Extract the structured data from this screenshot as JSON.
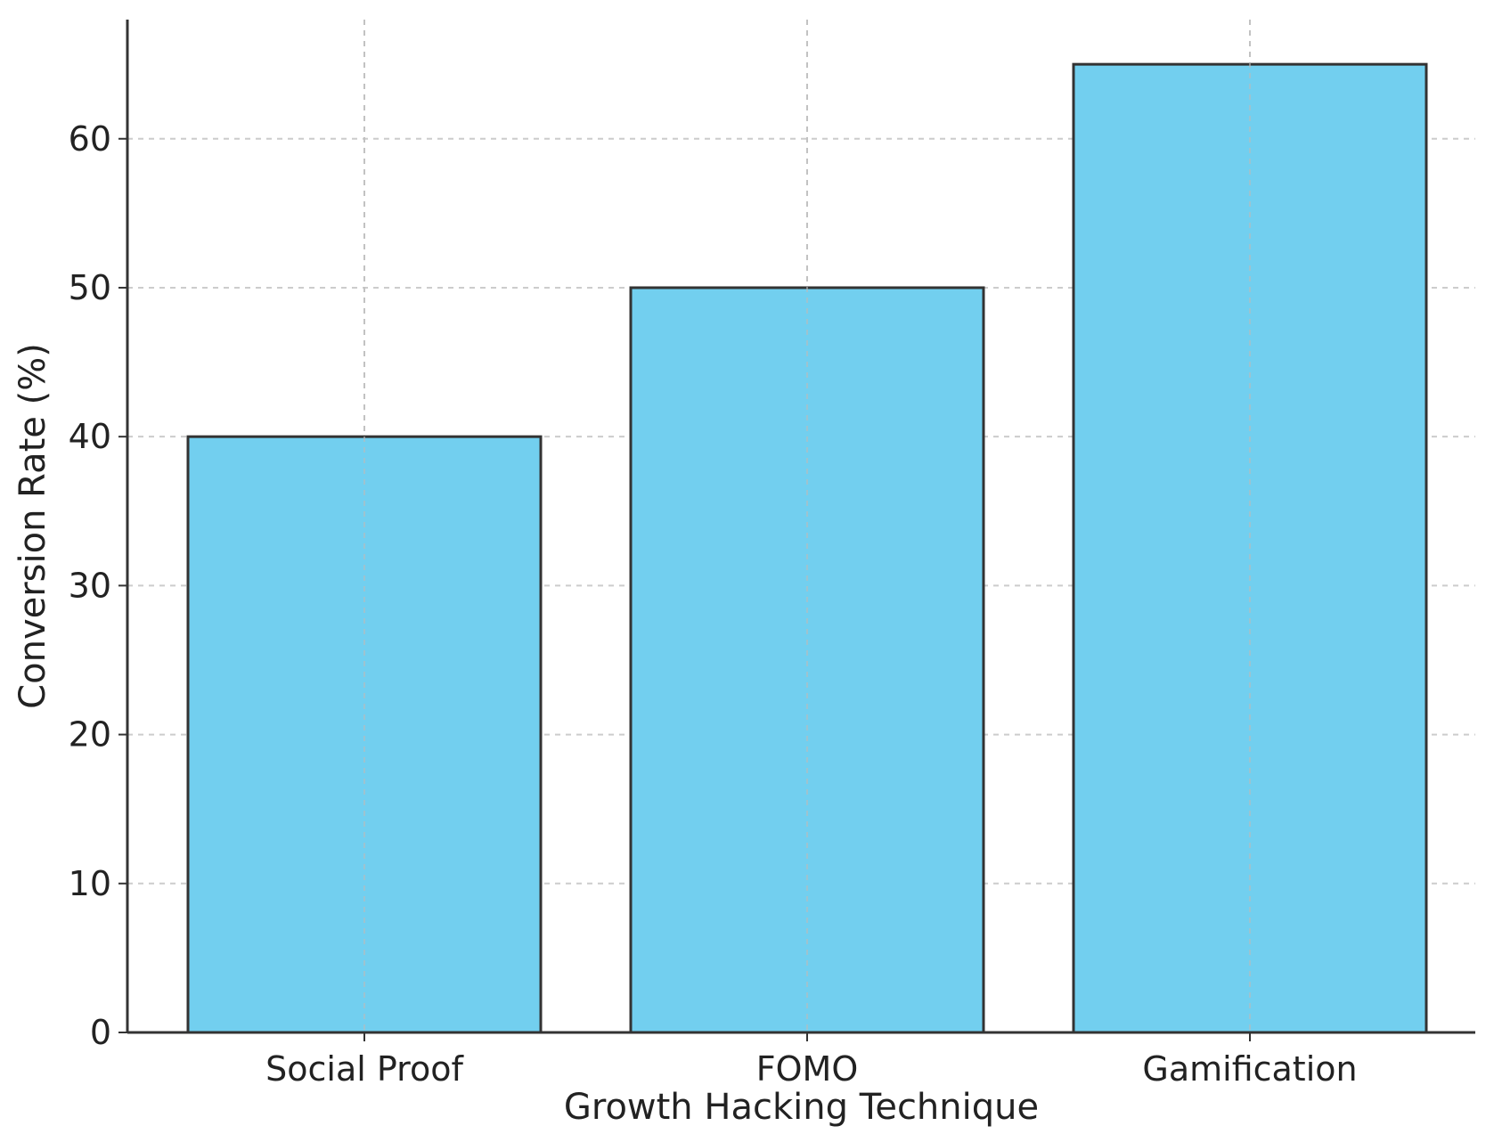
{
  "chart_data": {
    "type": "bar",
    "title": "",
    "xlabel": "Growth Hacking Technique",
    "ylabel": "Conversion Rate (%)",
    "categories": [
      "Social Proof",
      "FOMO",
      "Gamification"
    ],
    "values": [
      40,
      50,
      65
    ],
    "ylim": [
      0,
      68
    ],
    "yticks": [
      0,
      10,
      20,
      30,
      40,
      50,
      60
    ],
    "grid": true,
    "legend": "none",
    "bar_color": "#72CFEF",
    "bar_edge_color": "#333333"
  }
}
